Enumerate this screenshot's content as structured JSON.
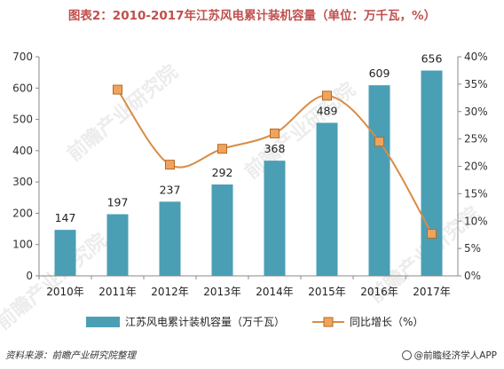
{
  "title": "图表2：2010-2017年江苏风电累计装机容量（单位：万千瓦，%）",
  "footer": {
    "source": "资料来源：前瞻产业研究院整理",
    "brand": "@前瞻经济学人APP"
  },
  "watermark": "前瞻产业研究院",
  "colors": {
    "bar": "#4a9fb5",
    "line": "#d98c45",
    "marker_fill": "#f0a35c",
    "title": "#c0504d",
    "grid": "#d9d9d9"
  },
  "chart_data": {
    "type": "bar",
    "categories": [
      "2010年",
      "2011年",
      "2012年",
      "2013年",
      "2014年",
      "2015年",
      "2016年",
      "2017年"
    ],
    "series": [
      {
        "name": "江苏风电累计装机容量（万千瓦）",
        "type": "bar",
        "axis": "left",
        "values": [
          147,
          197,
          237,
          292,
          368,
          489,
          609,
          656
        ]
      },
      {
        "name": "同比增长（%）",
        "type": "line",
        "axis": "right",
        "values": [
          null,
          34.0,
          20.3,
          23.2,
          26.0,
          32.9,
          24.5,
          7.7
        ]
      }
    ],
    "y_left": {
      "min": 0,
      "max": 700,
      "ticks": [
        "0",
        "100",
        "200",
        "300",
        "400",
        "500",
        "600",
        "700"
      ]
    },
    "y_right": {
      "min": 0,
      "max": 40,
      "ticks": [
        "0%",
        "5%",
        "10%",
        "15%",
        "20%",
        "25%",
        "30%",
        "35%",
        "40%"
      ]
    },
    "grid": false,
    "legend_position": "bottom"
  }
}
